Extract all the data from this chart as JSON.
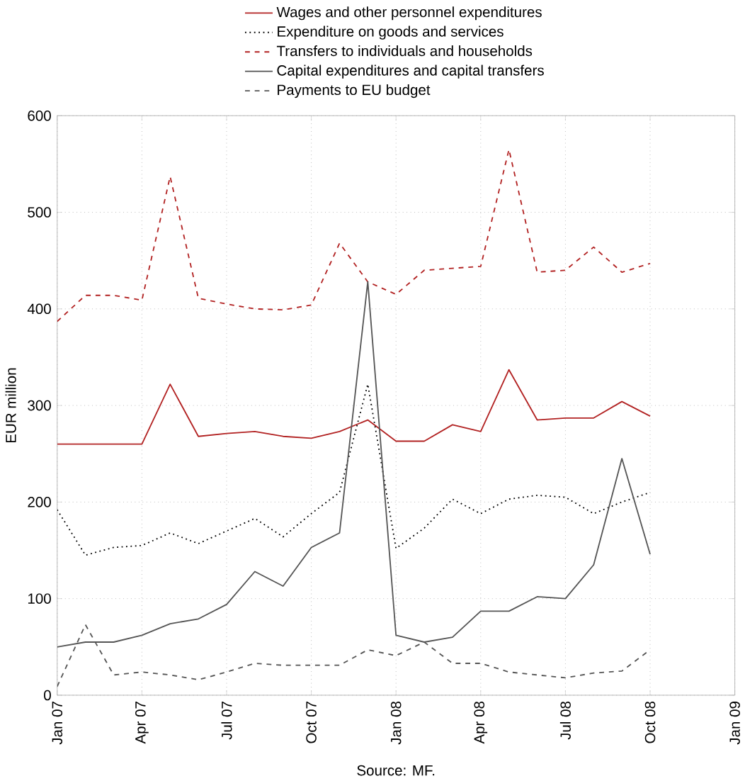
{
  "chart_data": {
    "type": "line",
    "ylabel": "EUR million",
    "annotations": [
      "Source: MF."
    ],
    "x": [
      "2007-01",
      "2007-02",
      "2007-03",
      "2007-04",
      "2007-05",
      "2007-06",
      "2007-07",
      "2007-08",
      "2007-09",
      "2007-10",
      "2007-11",
      "2007-12",
      "2008-01",
      "2008-02",
      "2008-03",
      "2008-04",
      "2008-05",
      "2008-06",
      "2008-07",
      "2008-08",
      "2008-09",
      "2008-10"
    ],
    "xlim": [
      "2007-01",
      "2009-01"
    ],
    "xticks": [
      {
        "value": "2007-01",
        "label": "Jan 07"
      },
      {
        "value": "2007-04",
        "label": "Apr 07"
      },
      {
        "value": "2007-07",
        "label": "Jul 07"
      },
      {
        "value": "2007-10",
        "label": "Oct 07"
      },
      {
        "value": "2008-01",
        "label": "Jan 08"
      },
      {
        "value": "2008-04",
        "label": "Apr 08"
      },
      {
        "value": "2008-07",
        "label": "Jul 08"
      },
      {
        "value": "2008-10",
        "label": "Oct 08"
      },
      {
        "value": "2009-01",
        "label": "Jan 09"
      }
    ],
    "ylim": [
      0,
      600
    ],
    "yticks": [
      0,
      100,
      200,
      300,
      400,
      500,
      600
    ],
    "grid": true,
    "legend": "top",
    "series": [
      {
        "name": "Wages and other personnel expenditures",
        "color": "#b22222",
        "line_style": "solid",
        "values": [
          260,
          260,
          260,
          260,
          322,
          268,
          271,
          273,
          268,
          266,
          273,
          285,
          263,
          263,
          280,
          273,
          337,
          285,
          287,
          287,
          304,
          289
        ]
      },
      {
        "name": "Expenditure on goods and services",
        "color": "#000000",
        "line_style": "dotted",
        "values": [
          192,
          145,
          153,
          155,
          168,
          157,
          170,
          183,
          164,
          188,
          210,
          322,
          152,
          173,
          203,
          188,
          203,
          207,
          205,
          188,
          200,
          210
        ]
      },
      {
        "name": "Transfers to individuals and households",
        "color": "#b22222",
        "line_style": "dashed",
        "values": [
          387,
          414,
          414,
          409,
          537,
          411,
          405,
          400,
          399,
          404,
          468,
          428,
          415,
          440,
          442,
          444,
          565,
          438,
          440,
          464,
          438,
          447
        ]
      },
      {
        "name": "Capital expenditures and capital transfers",
        "color": "#555555",
        "line_style": "solid",
        "values": [
          50,
          55,
          55,
          62,
          74,
          79,
          94,
          128,
          113,
          153,
          168,
          428,
          62,
          55,
          60,
          87,
          87,
          102,
          100,
          135,
          245,
          146
        ]
      },
      {
        "name": "Payments to EU budget",
        "color": "#555555",
        "line_style": "dashed",
        "values": [
          9,
          73,
          21,
          24,
          21,
          16,
          24,
          33,
          31,
          31,
          31,
          47,
          41,
          55,
          33,
          33,
          24,
          21,
          18,
          23,
          25,
          47
        ]
      }
    ]
  }
}
